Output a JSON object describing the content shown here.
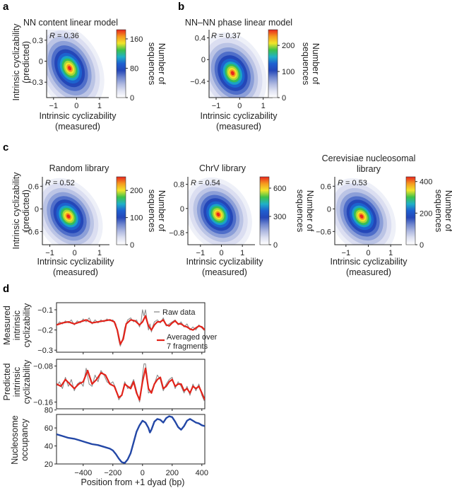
{
  "figure": {
    "colors": {
      "density": [
        "#ffffff",
        "#dfe2f2",
        "#aeb8e0",
        "#6f86cf",
        "#2447b8",
        "#1e5fd0",
        "#1fb0c8",
        "#3cc24a",
        "#f2e52a",
        "#f59a1f",
        "#e8261e"
      ],
      "line_red": "#e2231a",
      "line_gray": "#8c8c8c",
      "line_blue": "#2347a6"
    }
  },
  "panel_labels": [
    "a",
    "b",
    "c",
    "d"
  ],
  "chart_data": [
    {
      "id": "a",
      "type": "heatmap",
      "title": "NN content linear model",
      "annotation_R": "0.36",
      "xlabel": [
        "Intrinsic cyclizability",
        "(measured)"
      ],
      "ylabel": [
        "Intrinsic cyclizability",
        "(predicted)"
      ],
      "xticks": [
        "−1",
        "0",
        "1"
      ],
      "xtick_values": [
        -1,
        0,
        1
      ],
      "xlim": [
        -1.3,
        1.4
      ],
      "yticks": [
        "0.3",
        "0",
        "−0.3"
      ],
      "ytick_values": [
        0.3,
        0,
        -0.3
      ],
      "ylim": [
        -0.52,
        0.45
      ],
      "density_center": [
        -0.3,
        -0.1
      ],
      "spread": [
        0.55,
        0.25
      ],
      "corr": 0.36,
      "colorbar": {
        "label": [
          "Number of",
          "sequences"
        ],
        "ticks": [
          "160",
          "80",
          "0"
        ],
        "tick_values": [
          160,
          80,
          0
        ],
        "max": 185
      }
    },
    {
      "id": "b",
      "type": "heatmap",
      "title": "NN–NN phase linear model",
      "annotation_R": "0.37",
      "xlabel": [
        "Intrinsic cyclizability",
        "(measured)"
      ],
      "ylabel": [],
      "xticks": [
        "−1",
        "0",
        "1"
      ],
      "xtick_values": [
        -1,
        0,
        1
      ],
      "xlim": [
        -1.3,
        1.4
      ],
      "yticks": [
        "0.4",
        "0",
        "−0.4"
      ],
      "ytick_values": [
        0.4,
        0,
        -0.4
      ],
      "ylim": [
        -0.7,
        0.55
      ],
      "density_center": [
        -0.3,
        -0.25
      ],
      "spread": [
        0.55,
        0.3
      ],
      "corr": 0.37,
      "colorbar": {
        "label": [
          "Number of",
          "sequences"
        ],
        "ticks": [
          "200",
          "100",
          "0"
        ],
        "tick_values": [
          200,
          100,
          0
        ],
        "max": 260
      }
    },
    {
      "id": "c1",
      "type": "heatmap",
      "title": "Random library",
      "annotation_R": "0.52",
      "xlabel": [
        "Intrinsic cyclizability",
        "(measured)"
      ],
      "ylabel": [
        "Intrinsic cyclizability",
        "(predicted)"
      ],
      "xticks": [
        "−1",
        "0",
        "1"
      ],
      "xtick_values": [
        -1,
        0,
        1
      ],
      "xlim": [
        -1.3,
        1.4
      ],
      "yticks": [
        "0.6",
        "0",
        "−0.6"
      ],
      "ytick_values": [
        0.6,
        0,
        -0.6
      ],
      "ylim": [
        -0.95,
        0.85
      ],
      "density_center": [
        -0.25,
        -0.2
      ],
      "spread": [
        0.5,
        0.42
      ],
      "corr": 0.52,
      "colorbar": {
        "label": [
          "Number of",
          "sequences"
        ],
        "ticks": [
          "200",
          "100",
          "0"
        ],
        "tick_values": [
          200,
          100,
          0
        ],
        "max": 250
      }
    },
    {
      "id": "c2",
      "type": "heatmap",
      "title": "ChrV library",
      "annotation_R": "0.54",
      "xlabel": [
        "Intrinsic cyclizability",
        "(measured)"
      ],
      "ylabel": [],
      "xticks": [
        "−1",
        "0",
        "1"
      ],
      "xtick_values": [
        -1,
        0,
        1
      ],
      "xlim": [
        -1.6,
        1.6
      ],
      "yticks": [
        "0.8",
        "0",
        "−0.8"
      ],
      "ytick_values": [
        0.8,
        0,
        -0.8
      ],
      "ylim": [
        -1.2,
        1.05
      ],
      "density_center": [
        -0.15,
        -0.2
      ],
      "spread": [
        0.6,
        0.5
      ],
      "corr": 0.54,
      "colorbar": {
        "label": [
          "Number of",
          "sequences"
        ],
        "ticks": [
          "600",
          "300",
          "0"
        ],
        "tick_values": [
          600,
          300,
          0
        ],
        "max": 720
      }
    },
    {
      "id": "c3",
      "type": "heatmap",
      "title": "Cerevisiae nucleosomal library",
      "title_lines": [
        "Cerevisiae nucleosomal",
        "library"
      ],
      "annotation_R": "0.53",
      "xlabel": [
        "Intrinsic cyclizability",
        "(measured)"
      ],
      "ylabel": [],
      "xticks": [
        "−1",
        "0",
        "1"
      ],
      "xtick_values": [
        -1,
        0,
        1
      ],
      "xlim": [
        -1.5,
        1.5
      ],
      "yticks": [
        "0.6",
        "0",
        "−0.6"
      ],
      "ytick_values": [
        0.6,
        0,
        -0.6
      ],
      "ylim": [
        -0.95,
        0.85
      ],
      "density_center": [
        -0.3,
        -0.2
      ],
      "spread": [
        0.55,
        0.42
      ],
      "corr": 0.53,
      "colorbar": {
        "label": [
          "Number of",
          "sequences"
        ],
        "ticks": [
          "400",
          "200",
          "0"
        ],
        "tick_values": [
          400,
          200,
          0
        ],
        "max": 430
      }
    },
    {
      "id": "d",
      "type": "line",
      "xlabel": "Position from +1 dyad (bp)",
      "xlim": [
        -580,
        420
      ],
      "xticks": [
        "−400",
        "−200",
        "0",
        "200",
        "400"
      ],
      "xtick_values": [
        -400,
        -200,
        0,
        200,
        400
      ],
      "subplots": [
        {
          "ylabel": [
            "Measured",
            "intrinsic",
            "cyclizability"
          ],
          "ylim": [
            -0.31,
            -0.065
          ],
          "yticks": [
            "−0.1",
            "−0.2",
            "−0.3"
          ],
          "ytick_values": [
            -0.1,
            -0.2,
            -0.3
          ],
          "legend_top": "Raw data",
          "legend_bottom": [
            "Averaged over",
            "7 fragments"
          ],
          "series": [
            {
              "name": "Averaged over 7 fragments",
              "x": [
                -580,
                -540,
                -500,
                -460,
                -420,
                -380,
                -340,
                -300,
                -260,
                -220,
                -190,
                -170,
                -150,
                -130,
                -110,
                -80,
                -50,
                -20,
                0,
                20,
                40,
                60,
                80,
                100,
                120,
                140,
                160,
                180,
                200,
                220,
                240,
                260,
                280,
                300,
                320,
                340,
                360,
                380,
                400,
                420
              ],
              "y": [
                -0.175,
                -0.165,
                -0.16,
                -0.17,
                -0.16,
                -0.15,
                -0.165,
                -0.16,
                -0.155,
                -0.15,
                -0.16,
                -0.2,
                -0.27,
                -0.245,
                -0.17,
                -0.15,
                -0.155,
                -0.175,
                -0.16,
                -0.13,
                -0.18,
                -0.2,
                -0.175,
                -0.16,
                -0.16,
                -0.15,
                -0.175,
                -0.18,
                -0.165,
                -0.155,
                -0.17,
                -0.17,
                -0.18,
                -0.185,
                -0.195,
                -0.2,
                -0.19,
                -0.18,
                -0.185,
                -0.2
              ]
            },
            {
              "name": "Raw data",
              "x": [
                -580,
                -560,
                -540,
                -520,
                -500,
                -480,
                -460,
                -440,
                -420,
                -400,
                -380,
                -360,
                -340,
                -320,
                -300,
                -280,
                -260,
                -240,
                -220,
                -200,
                -180,
                -170,
                -160,
                -150,
                -140,
                -130,
                -120,
                -100,
                -80,
                -60,
                -40,
                -20,
                -10,
                0,
                10,
                20,
                30,
                40,
                50,
                60,
                70,
                80,
                100,
                120,
                140,
                160,
                180,
                200,
                220,
                240,
                260,
                280,
                300,
                320,
                340,
                360,
                380,
                400,
                420
              ],
              "y": [
                -0.18,
                -0.16,
                -0.17,
                -0.155,
                -0.165,
                -0.15,
                -0.175,
                -0.155,
                -0.165,
                -0.145,
                -0.16,
                -0.14,
                -0.17,
                -0.15,
                -0.165,
                -0.15,
                -0.16,
                -0.145,
                -0.155,
                -0.15,
                -0.17,
                -0.21,
                -0.25,
                -0.28,
                -0.26,
                -0.23,
                -0.19,
                -0.15,
                -0.14,
                -0.16,
                -0.15,
                -0.185,
                -0.16,
                -0.1,
                -0.13,
                -0.1,
                -0.15,
                -0.2,
                -0.17,
                -0.21,
                -0.18,
                -0.16,
                -0.15,
                -0.165,
                -0.14,
                -0.18,
                -0.17,
                -0.16,
                -0.15,
                -0.175,
                -0.16,
                -0.185,
                -0.17,
                -0.2,
                -0.185,
                -0.2,
                -0.175,
                -0.19,
                -0.205
              ]
            }
          ]
        },
        {
          "ylabel": [
            "Predicted",
            "intrinsic",
            "cyclizability"
          ],
          "ylim": [
            -0.175,
            -0.065
          ],
          "yticks": [
            "−0.08",
            "−0.16"
          ],
          "ytick_values": [
            -0.08,
            -0.16
          ],
          "series": [
            {
              "name": "Averaged over 7 fragments",
              "x": [
                -580,
                -550,
                -520,
                -490,
                -460,
                -430,
                -400,
                -370,
                -340,
                -310,
                -280,
                -250,
                -220,
                -190,
                -160,
                -140,
                -120,
                -100,
                -80,
                -60,
                -40,
                -20,
                0,
                20,
                40,
                60,
                80,
                100,
                120,
                140,
                160,
                180,
                200,
                220,
                240,
                260,
                280,
                300,
                320,
                340,
                360,
                380,
                400,
                420
              ],
              "y": [
                -0.12,
                -0.125,
                -0.11,
                -0.12,
                -0.13,
                -0.12,
                -0.115,
                -0.09,
                -0.12,
                -0.11,
                -0.095,
                -0.1,
                -0.12,
                -0.125,
                -0.15,
                -0.145,
                -0.12,
                -0.125,
                -0.13,
                -0.115,
                -0.14,
                -0.155,
                -0.115,
                -0.085,
                -0.13,
                -0.14,
                -0.12,
                -0.11,
                -0.105,
                -0.13,
                -0.125,
                -0.115,
                -0.11,
                -0.125,
                -0.12,
                -0.12,
                -0.135,
                -0.13,
                -0.14,
                -0.125,
                -0.13,
                -0.125,
                -0.14,
                -0.155
              ]
            },
            {
              "name": "Raw data",
              "x": [
                -580,
                -560,
                -540,
                -520,
                -500,
                -480,
                -460,
                -440,
                -420,
                -400,
                -380,
                -360,
                -340,
                -320,
                -300,
                -280,
                -260,
                -240,
                -220,
                -200,
                -180,
                -160,
                -140,
                -120,
                -100,
                -80,
                -60,
                -40,
                -20,
                -10,
                0,
                10,
                20,
                30,
                40,
                60,
                80,
                100,
                120,
                140,
                160,
                180,
                200,
                220,
                240,
                260,
                280,
                300,
                320,
                340,
                360,
                380,
                400,
                420
              ],
              "y": [
                -0.125,
                -0.115,
                -0.13,
                -0.105,
                -0.125,
                -0.11,
                -0.135,
                -0.12,
                -0.115,
                -0.125,
                -0.085,
                -0.12,
                -0.125,
                -0.1,
                -0.115,
                -0.09,
                -0.1,
                -0.115,
                -0.12,
                -0.115,
                -0.13,
                -0.155,
                -0.145,
                -0.115,
                -0.13,
                -0.125,
                -0.11,
                -0.135,
                -0.16,
                -0.14,
                -0.1,
                -0.075,
                -0.075,
                -0.1,
                -0.14,
                -0.135,
                -0.12,
                -0.1,
                -0.11,
                -0.135,
                -0.12,
                -0.11,
                -0.105,
                -0.13,
                -0.115,
                -0.125,
                -0.14,
                -0.125,
                -0.145,
                -0.12,
                -0.135,
                -0.12,
                -0.145,
                -0.16
              ]
            }
          ]
        },
        {
          "ylabel": [
            "Nucleosome",
            "occupancy"
          ],
          "ylim": [
            20,
            75
          ],
          "yticks": [
            "80",
            "60",
            "40",
            "20"
          ],
          "ytick_values": [
            80,
            60,
            40,
            20
          ],
          "series": [
            {
              "name": "Nucleosome occupancy",
              "x": [
                -580,
                -540,
                -500,
                -460,
                -420,
                -380,
                -340,
                -300,
                -260,
                -220,
                -200,
                -180,
                -160,
                -140,
                -120,
                -100,
                -80,
                -60,
                -40,
                -20,
                0,
                20,
                40,
                50,
                60,
                80,
                100,
                120,
                140,
                160,
                180,
                200,
                220,
                240,
                260,
                280,
                300,
                320,
                340,
                360,
                380,
                400,
                420
              ],
              "y": [
                53,
                51,
                49,
                48,
                46,
                44,
                42,
                41,
                39,
                37,
                35,
                31,
                26,
                22,
                21,
                25,
                32,
                44,
                56,
                63,
                68,
                66,
                60,
                55,
                58,
                67,
                70,
                69,
                66,
                71,
                73,
                72,
                67,
                61,
                58,
                62,
                68,
                70,
                68,
                66,
                65,
                63,
                62
              ]
            }
          ]
        }
      ]
    }
  ]
}
